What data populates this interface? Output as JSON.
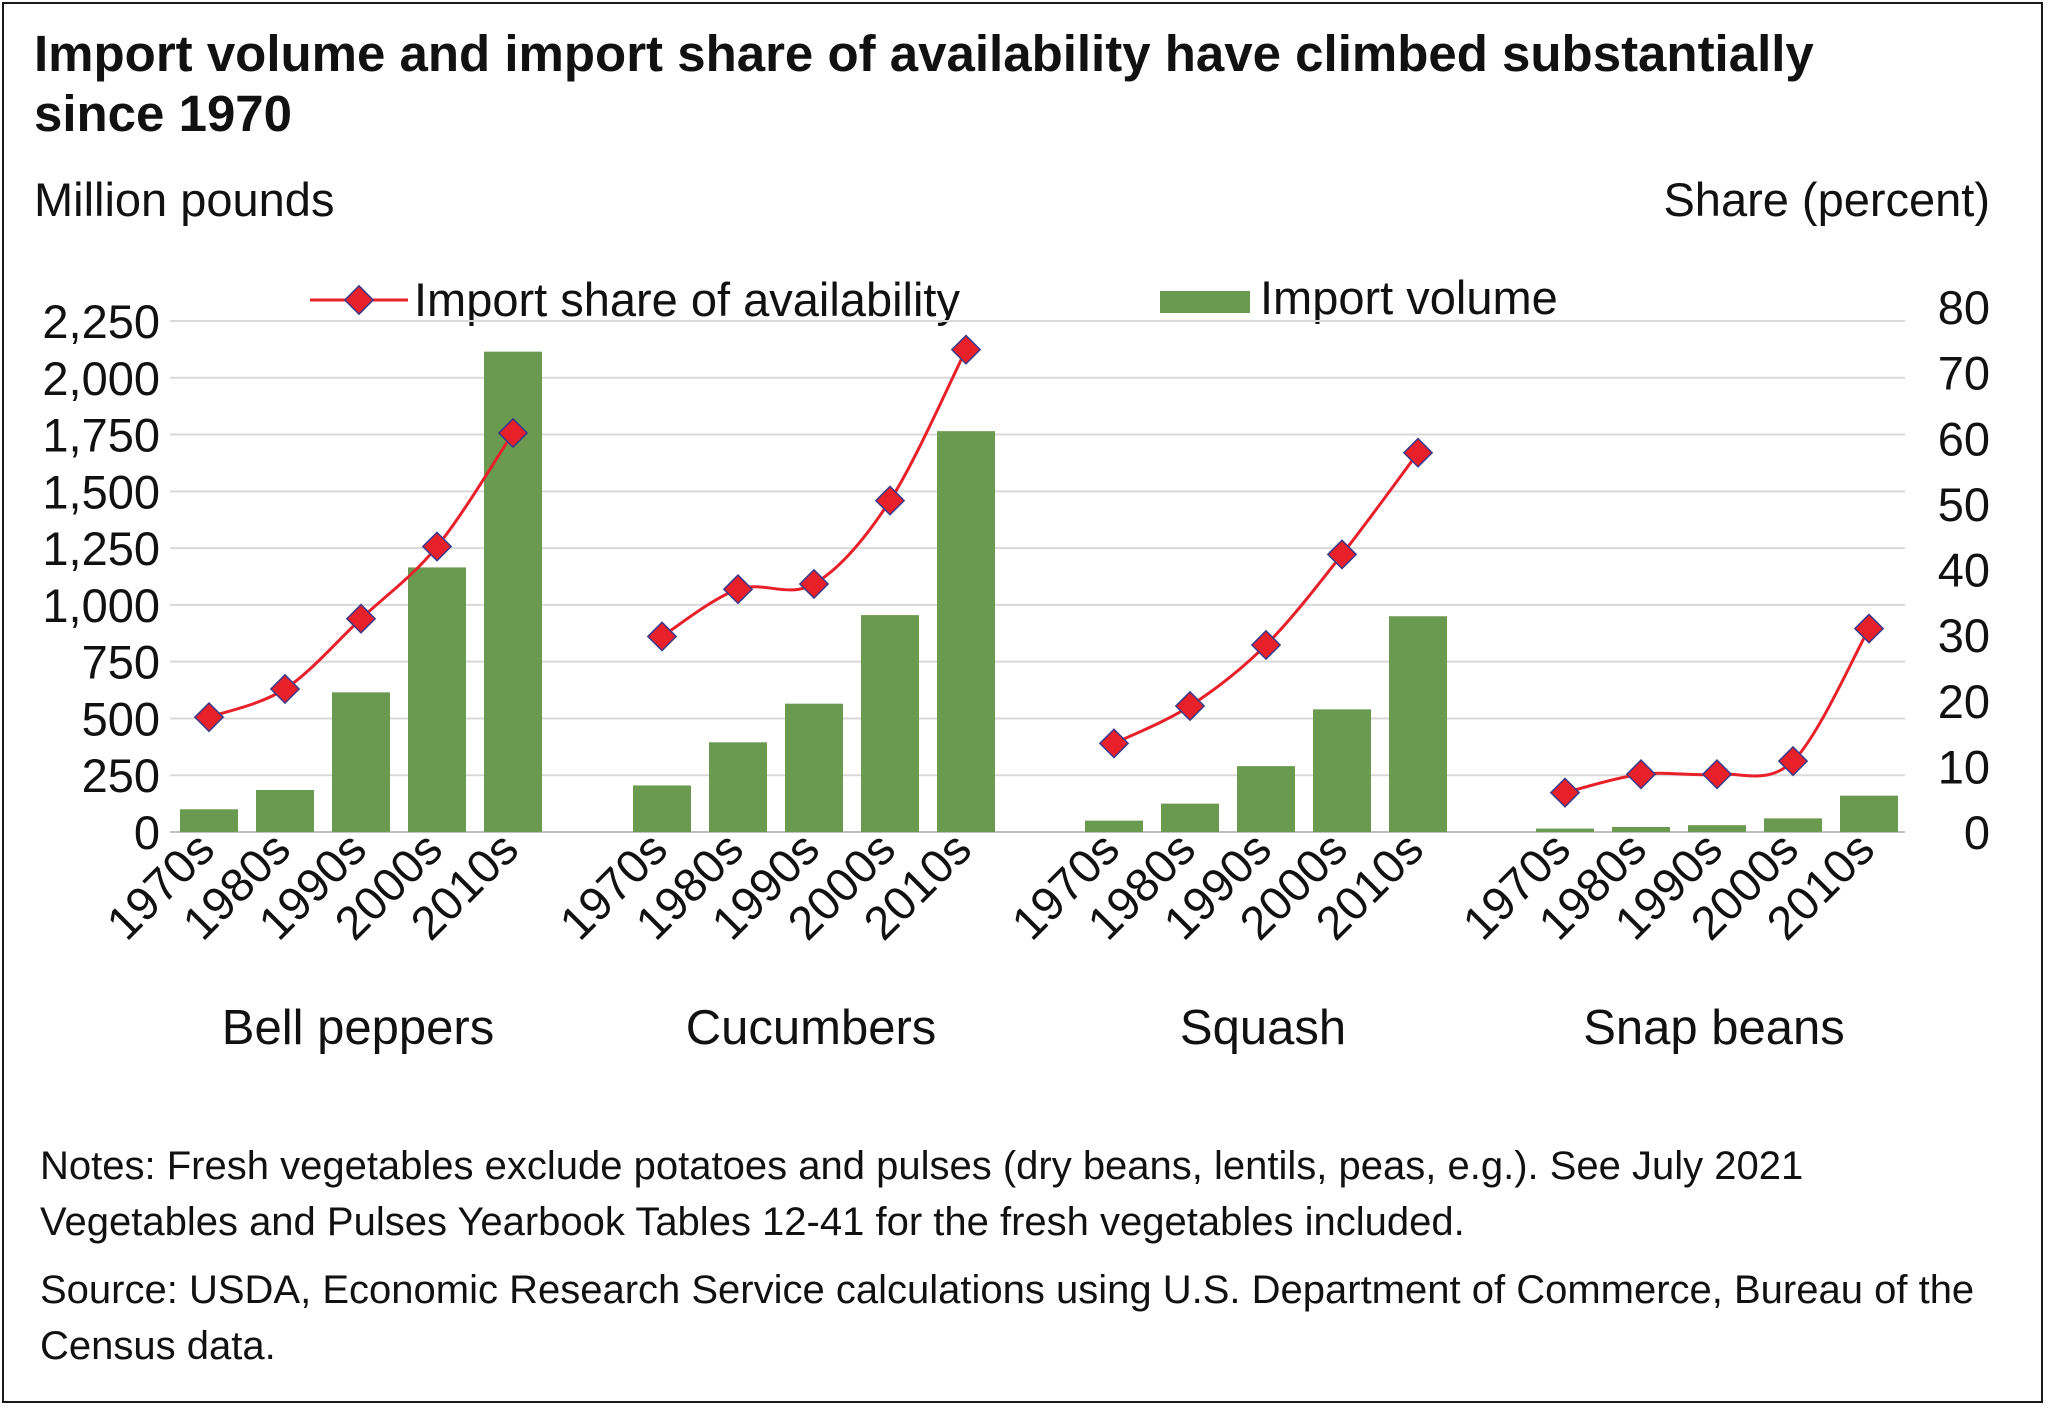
{
  "title": "Import volume and import share of availability have climbed substantially since 1970",
  "notes": "Notes: Fresh vegetables exclude potatoes and pulses (dry beans, lentils, peas, e.g.). See July 2021 Vegetables and Pulses Yearbook Tables 12-41 for the fresh vegetables included.",
  "source": "Source: USDA, Economic Research Service calculations using U.S. Department of Commerce, Bureau of the Census data.",
  "chart_data": {
    "type": "bar",
    "title": "Import volume and import share of availability have climbed substantially since 1970",
    "ylabel": "Million pounds",
    "y2label": "Share (percent)",
    "ylim": [
      0,
      2250
    ],
    "y2lim": [
      0,
      80
    ],
    "yticks": [
      "0",
      "250",
      "500",
      "750",
      "1,000",
      "1,250",
      "1,500",
      "1,750",
      "2,000",
      "2,250"
    ],
    "y2ticks": [
      "0",
      "10",
      "20",
      "30",
      "40",
      "50",
      "60",
      "70",
      "80"
    ],
    "decades": [
      "1970s",
      "1980s",
      "1990s",
      "2000s",
      "2010s"
    ],
    "legend": {
      "line": "Import share of availability",
      "bar": "Import volume",
      "placement": "top"
    },
    "colors": {
      "bar": "#6a9a4f",
      "line": "#e8202a",
      "marker_edge": "#3a3a8a",
      "grid": "#d9d9d9"
    },
    "groups": [
      {
        "name": "Bell peppers",
        "import_volume": [
          100,
          185,
          615,
          1165,
          2115
        ],
        "import_share": [
          17.5,
          21.8,
          32.5,
          43.5,
          60.8
        ]
      },
      {
        "name": "Cucumbers",
        "import_volume": [
          205,
          395,
          565,
          955,
          1765
        ],
        "import_share": [
          29.8,
          37.0,
          37.8,
          50.5,
          73.5
        ]
      },
      {
        "name": "Squash",
        "import_volume": [
          50,
          125,
          290,
          540,
          950
        ],
        "import_share": [
          13.5,
          19.2,
          28.5,
          42.3,
          57.8
        ]
      },
      {
        "name": "Snap beans",
        "import_volume": [
          15,
          22,
          30,
          60,
          160
        ],
        "import_share": [
          6.0,
          8.8,
          8.8,
          10.8,
          31.0
        ]
      }
    ]
  }
}
